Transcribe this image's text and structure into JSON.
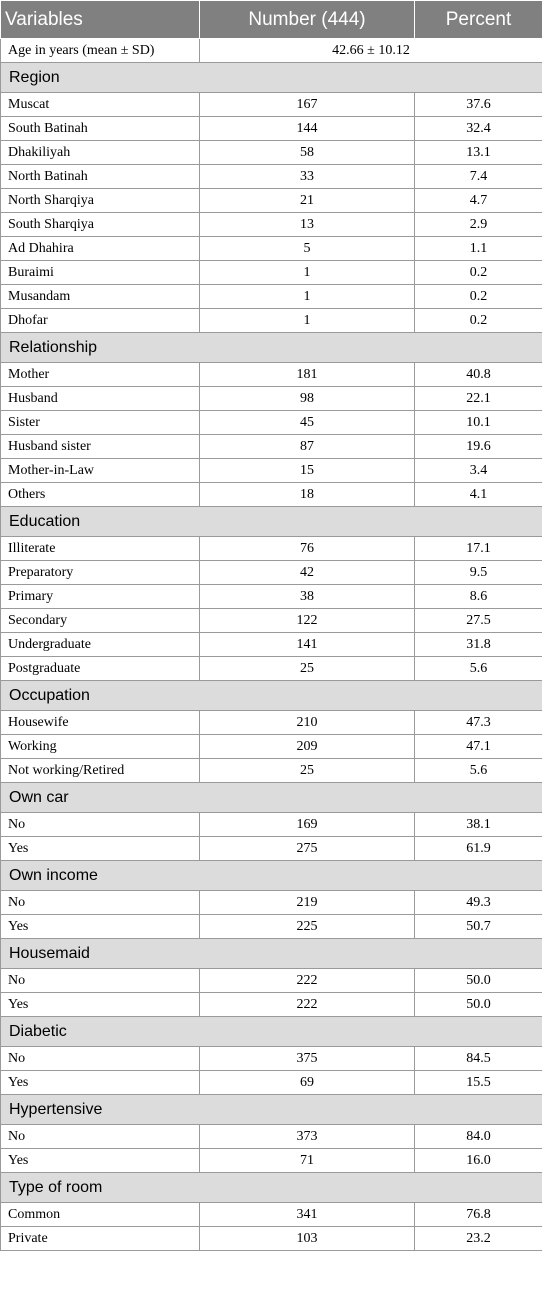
{
  "header": {
    "col1": "Variables",
    "col2": "Number (444)",
    "col3": "Percent"
  },
  "age_row": {
    "label": "Age in years (mean ± SD)",
    "value": "42.66 ± 10.12"
  },
  "sections": [
    {
      "title": "Region",
      "rows": [
        {
          "label": "Muscat",
          "number": "167",
          "percent": "37.6"
        },
        {
          "label": "South Batinah",
          "number": "144",
          "percent": "32.4"
        },
        {
          "label": "Dhakiliyah",
          "number": "58",
          "percent": "13.1"
        },
        {
          "label": "North Batinah",
          "number": "33",
          "percent": "7.4"
        },
        {
          "label": "North Sharqiya",
          "number": "21",
          "percent": "4.7"
        },
        {
          "label": "South Sharqiya",
          "number": "13",
          "percent": "2.9"
        },
        {
          "label": "Ad Dhahira",
          "number": "5",
          "percent": "1.1"
        },
        {
          "label": "Buraimi",
          "number": "1",
          "percent": "0.2"
        },
        {
          "label": "Musandam",
          "number": "1",
          "percent": "0.2"
        },
        {
          "label": "Dhofar",
          "number": "1",
          "percent": "0.2"
        }
      ]
    },
    {
      "title": "Relationship",
      "rows": [
        {
          "label": "Mother",
          "number": "181",
          "percent": "40.8"
        },
        {
          "label": "Husband",
          "number": "98",
          "percent": "22.1"
        },
        {
          "label": "Sister",
          "number": "45",
          "percent": "10.1"
        },
        {
          "label": "Husband sister",
          "number": "87",
          "percent": "19.6"
        },
        {
          "label": "Mother-in-Law",
          "number": "15",
          "percent": "3.4"
        },
        {
          "label": "Others",
          "number": "18",
          "percent": "4.1"
        }
      ]
    },
    {
      "title": "Education",
      "rows": [
        {
          "label": "Illiterate",
          "number": "76",
          "percent": "17.1"
        },
        {
          "label": "Preparatory",
          "number": "42",
          "percent": "9.5"
        },
        {
          "label": "Primary",
          "number": "38",
          "percent": "8.6"
        },
        {
          "label": "Secondary",
          "number": "122",
          "percent": "27.5"
        },
        {
          "label": "Undergraduate",
          "number": "141",
          "percent": "31.8"
        },
        {
          "label": "Postgraduate",
          "number": "25",
          "percent": "5.6"
        }
      ]
    },
    {
      "title": "Occupation",
      "rows": [
        {
          "label": "Housewife",
          "number": "210",
          "percent": "47.3"
        },
        {
          "label": "Working",
          "number": "209",
          "percent": "47.1"
        },
        {
          "label": "Not working/Retired",
          "number": "25",
          "percent": "5.6"
        }
      ]
    },
    {
      "title": "Own car",
      "rows": [
        {
          "label": "No",
          "number": "169",
          "percent": "38.1"
        },
        {
          "label": "Yes",
          "number": "275",
          "percent": "61.9"
        }
      ]
    },
    {
      "title": "Own income",
      "rows": [
        {
          "label": "No",
          "number": "219",
          "percent": "49.3"
        },
        {
          "label": "Yes",
          "number": "225",
          "percent": "50.7"
        }
      ]
    },
    {
      "title": "Housemaid",
      "rows": [
        {
          "label": "No",
          "number": "222",
          "percent": "50.0"
        },
        {
          "label": "Yes",
          "number": "222",
          "percent": "50.0"
        }
      ]
    },
    {
      "title": "Diabetic",
      "rows": [
        {
          "label": "No",
          "number": "375",
          "percent": "84.5"
        },
        {
          "label": "Yes",
          "number": "69",
          "percent": "15.5"
        }
      ]
    },
    {
      "title": "Hypertensive",
      "rows": [
        {
          "label": "No",
          "number": "373",
          "percent": "84.0"
        },
        {
          "label": "Yes",
          "number": "71",
          "percent": "16.0"
        }
      ]
    },
    {
      "title": "Type of room",
      "rows": [
        {
          "label": "Common",
          "number": "341",
          "percent": "76.8"
        },
        {
          "label": "Private",
          "number": "103",
          "percent": "23.2"
        }
      ]
    }
  ]
}
